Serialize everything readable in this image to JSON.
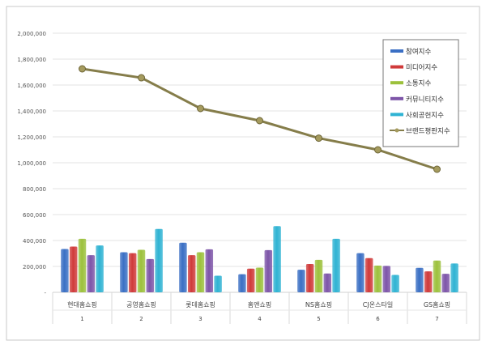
{
  "chart_data": {
    "type": "bar",
    "categories": [
      "현대홈쇼핑",
      "공영홈쇼핑",
      "롯데홈쇼핑",
      "홈앤쇼핑",
      "NS홈쇼핑",
      "CJ온스타일",
      "GS홈쇼핑"
    ],
    "ranks": [
      "1",
      "2",
      "3",
      "4",
      "5",
      "6",
      "7"
    ],
    "ylim": [
      0,
      2000000
    ],
    "yticks": [
      0,
      200000,
      400000,
      600000,
      800000,
      1000000,
      1200000,
      1400000,
      1600000,
      1800000,
      2000000
    ],
    "ytick_labels": [
      "-",
      "200,000",
      "400,000",
      "600,000",
      "800,000",
      "1,000,000",
      "1,200,000",
      "1,400,000",
      "1,600,000",
      "1,800,000",
      "2,000,000"
    ],
    "grid": true,
    "legend_position": "top-right",
    "series": [
      {
        "name": "참여지수",
        "type": "bar",
        "color": "#3a6fc4",
        "values": [
          334000,
          309000,
          383000,
          140000,
          174000,
          302000,
          189000
        ]
      },
      {
        "name": "미디어지수",
        "type": "bar",
        "color": "#d03a3a",
        "values": [
          353000,
          302000,
          287000,
          183000,
          219000,
          264000,
          162000
        ]
      },
      {
        "name": "소통지수",
        "type": "bar",
        "color": "#9cc13c",
        "values": [
          413000,
          328000,
          309000,
          191000,
          251000,
          206000,
          245000
        ]
      },
      {
        "name": "커뮤니티지수",
        "type": "bar",
        "color": "#7d55a8",
        "values": [
          287000,
          257000,
          332000,
          326000,
          145000,
          204000,
          143000
        ]
      },
      {
        "name": "사회공헌지수",
        "type": "bar",
        "color": "#2fb3d3",
        "values": [
          362000,
          489000,
          128000,
          511000,
          413000,
          134000,
          223000
        ]
      },
      {
        "name": "브랜드평판지수",
        "type": "line",
        "color": "#857d4a",
        "values": [
          1725000,
          1656000,
          1419000,
          1325000,
          1190000,
          1100000,
          950000
        ]
      }
    ]
  }
}
